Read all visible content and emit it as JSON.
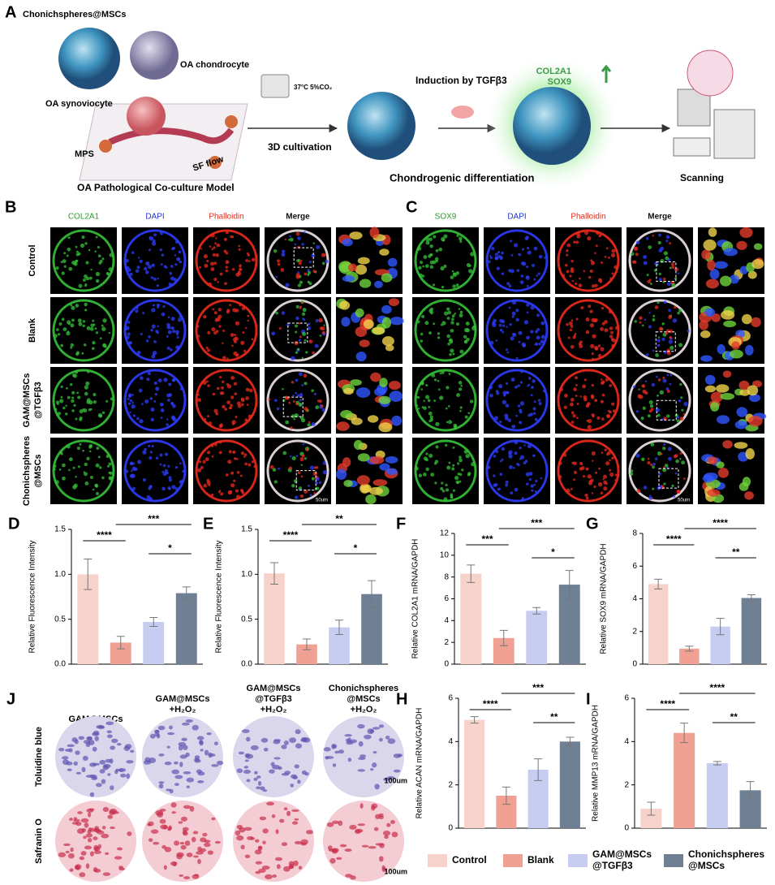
{
  "panel_a": {
    "label": "A",
    "sphere": "Chonichspheres@MSCs",
    "chondrocyte": "OA chondrocyte",
    "synoviocyte": "OA synoviocyte",
    "mps": "MPS",
    "flow": "SF flow",
    "model": "OA Pathological Co-culture Model",
    "incubator": "37°C 5%CO₂",
    "cultivation": "3D cultivation",
    "induction": "Induction by TGFβ3",
    "markers": [
      "COL2A1",
      "SOX9"
    ],
    "differentiation": "Chondrogenic differentiation",
    "scanning": "Scanning"
  },
  "panel_b": {
    "label": "B",
    "columns": [
      "COL2A1",
      "DAPI",
      "Phalloidin",
      "Merge"
    ],
    "rows": [
      [
        "Control"
      ],
      [
        "Blank"
      ],
      [
        "GAM@MSCs",
        "@TGFβ3"
      ],
      [
        "Chonichspheres",
        "@MSCs"
      ]
    ],
    "scale": "50um"
  },
  "panel_c": {
    "label": "C",
    "columns": [
      "SOX9",
      "DAPI",
      "Phalloidin",
      "Merge"
    ],
    "scale": "50um"
  },
  "panel_j": {
    "label": "J",
    "columns": [
      [
        "GAM@MSCs"
      ],
      [
        "GAM@MSCs",
        "+H₂O₂"
      ],
      [
        "GAM@MSCs",
        "@TGFβ3",
        "+H₂O₂"
      ],
      [
        "Chonichspheres",
        "@MSCs",
        "+H₂O₂"
      ]
    ],
    "rows": [
      "Toluidine blue",
      "Safranin O"
    ],
    "scales": [
      "100um",
      "100um"
    ]
  },
  "legend": {
    "items": [
      {
        "name": [
          "Control"
        ],
        "color": "#f7d2ca"
      },
      {
        "name": [
          "Blank"
        ],
        "color": "#f0a193"
      },
      {
        "name": [
          "GAM@MSCs",
          "@TGFβ3"
        ],
        "color": "#c7cdf0"
      },
      {
        "name": [
          "Chonichspheres",
          "@MSCs"
        ],
        "color": "#6f8095"
      }
    ]
  },
  "chart_data": [
    {
      "type": "bar",
      "label": "D",
      "ylabel": "Relative Fluorescence Intensity",
      "categories": [
        null,
        null,
        null,
        null
      ],
      "values": [
        1.0,
        0.24,
        0.47,
        0.79
      ],
      "errors": [
        0.17,
        0.07,
        0.05,
        0.07
      ],
      "ylim": [
        0,
        1.5
      ],
      "yticks": [
        {
          "value": 0,
          "label": "0.0"
        },
        0.5,
        {
          "value": 1,
          "label": "1.0"
        },
        1.5
      ],
      "significance": [
        "****",
        "***",
        "*"
      ]
    },
    {
      "type": "bar",
      "label": "E",
      "ylabel": "Relative Fluorescence Intensity",
      "categories": [
        null,
        null,
        null,
        null
      ],
      "values": [
        1.01,
        0.22,
        0.41,
        0.78
      ],
      "errors": [
        0.12,
        0.06,
        0.08,
        0.15
      ],
      "ylim": [
        0,
        1.5
      ],
      "yticks": [
        {
          "value": 0,
          "label": "0.0"
        },
        0.5,
        {
          "value": 1,
          "label": "1.0"
        },
        1.5
      ],
      "significance": [
        "****",
        "**",
        "*"
      ]
    },
    {
      "type": "bar",
      "label": "F",
      "ylabel": "Relative COL2A1 mRNA/GAPDH",
      "categories": [
        null,
        null,
        null,
        null
      ],
      "values": [
        8.3,
        2.4,
        4.9,
        7.3
      ],
      "errors": [
        0.8,
        0.7,
        0.3,
        1.3
      ],
      "ylim": [
        0,
        12
      ],
      "yticks": [
        0,
        2,
        4,
        6,
        8,
        10,
        12
      ],
      "significance": [
        "***",
        "***",
        "*"
      ]
    },
    {
      "type": "bar",
      "label": "G",
      "ylabel": "Relative SOX9 mRNA/GAPDH",
      "categories": [
        null,
        null,
        null,
        null
      ],
      "values": [
        4.9,
        0.95,
        2.3,
        4.05
      ],
      "errors": [
        0.3,
        0.15,
        0.5,
        0.2
      ],
      "ylim": [
        0,
        8
      ],
      "yticks": [
        0,
        2,
        4,
        6,
        8
      ],
      "significance": [
        "****",
        "****",
        "**"
      ]
    },
    {
      "type": "bar",
      "label": "H",
      "ylabel": "Relative ACAN mRNA/GAPDH",
      "categories": [
        null,
        null,
        null,
        null
      ],
      "values": [
        5.0,
        1.5,
        2.7,
        4.0
      ],
      "errors": [
        0.15,
        0.4,
        0.5,
        0.2
      ],
      "ylim": [
        0,
        6
      ],
      "yticks": [
        0,
        2,
        4,
        6
      ],
      "significance": [
        "****",
        "***",
        "**"
      ]
    },
    {
      "type": "bar",
      "label": "I",
      "ylabel": "Relative MMP13 mRNA/GAPDH",
      "categories": [
        null,
        null,
        null,
        null
      ],
      "values": [
        0.9,
        4.4,
        3.0,
        1.75
      ],
      "errors": [
        0.3,
        0.45,
        0.08,
        0.4
      ],
      "ylim": [
        0,
        6
      ],
      "yticks": [
        0,
        2,
        4,
        6
      ],
      "significance": [
        "****",
        "****",
        "**"
      ]
    }
  ]
}
